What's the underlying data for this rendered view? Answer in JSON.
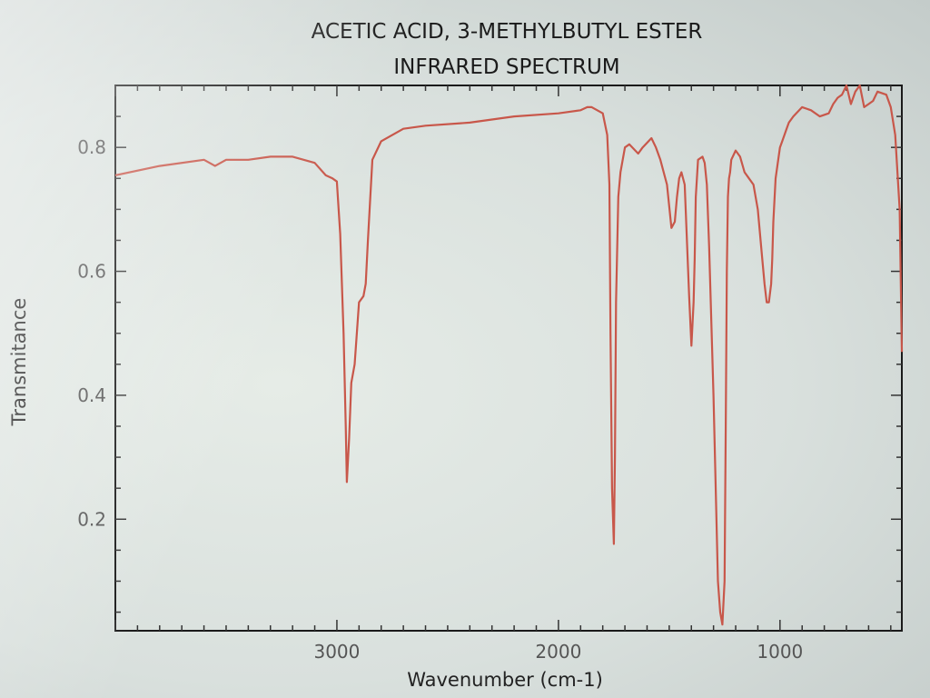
{
  "chart_data": {
    "type": "line",
    "title": [
      "ACETIC ACID, 3-METHYLBUTYL ESTER",
      "INFRARED SPECTRUM"
    ],
    "xlabel": "Wavenumber (cm-1)",
    "ylabel": "Transmitance",
    "xlim": [
      4000,
      450
    ],
    "ylim": [
      0.02,
      0.9
    ],
    "x_reversed": true,
    "x_ticks": [
      3000,
      2000,
      1000
    ],
    "x_tick_labels": [
      "3000",
      "2000",
      "1000"
    ],
    "y_ticks": [
      0.2,
      0.4,
      0.6,
      0.8
    ],
    "y_tick_labels": [
      "0.2",
      "0.4",
      "0.6",
      "0.8"
    ],
    "grid": false,
    "line_color": "#c8574a",
    "series": [
      {
        "x": [
          4000,
          3800,
          3600,
          3550,
          3500,
          3400,
          3300,
          3200,
          3100,
          3050,
          3020,
          3000,
          2985,
          2970,
          2960,
          2955,
          2945,
          2935,
          2920,
          2900,
          2880,
          2870,
          2860,
          2840,
          2800,
          2700,
          2600,
          2400,
          2200,
          2000,
          1900,
          1870,
          1850,
          1800,
          1780,
          1770,
          1765,
          1758,
          1750,
          1745,
          1740,
          1730,
          1720,
          1700,
          1680,
          1640,
          1620,
          1580,
          1560,
          1540,
          1510,
          1490,
          1475,
          1465,
          1455,
          1445,
          1430,
          1410,
          1400,
          1390,
          1385,
          1380,
          1370,
          1350,
          1340,
          1330,
          1320,
          1300,
          1280,
          1270,
          1260,
          1250,
          1245,
          1240,
          1235,
          1230,
          1225,
          1220,
          1200,
          1180,
          1160,
          1140,
          1120,
          1100,
          1080,
          1070,
          1060,
          1050,
          1040,
          1035,
          1030,
          1020,
          1000,
          990,
          970,
          960,
          940,
          900,
          860,
          820,
          780,
          760,
          740,
          720,
          700,
          680,
          660,
          640,
          620,
          600,
          580,
          560,
          520,
          500,
          480,
          460,
          450
        ],
        "y": [
          0.755,
          0.77,
          0.78,
          0.77,
          0.78,
          0.78,
          0.785,
          0.785,
          0.775,
          0.755,
          0.75,
          0.745,
          0.66,
          0.5,
          0.35,
          0.26,
          0.33,
          0.42,
          0.45,
          0.55,
          0.56,
          0.58,
          0.65,
          0.78,
          0.81,
          0.83,
          0.835,
          0.84,
          0.85,
          0.855,
          0.86,
          0.865,
          0.865,
          0.855,
          0.82,
          0.74,
          0.5,
          0.25,
          0.16,
          0.3,
          0.55,
          0.72,
          0.76,
          0.8,
          0.805,
          0.79,
          0.8,
          0.815,
          0.8,
          0.78,
          0.74,
          0.67,
          0.68,
          0.72,
          0.75,
          0.76,
          0.74,
          0.56,
          0.48,
          0.55,
          0.62,
          0.72,
          0.78,
          0.785,
          0.775,
          0.74,
          0.64,
          0.4,
          0.1,
          0.05,
          0.03,
          0.1,
          0.35,
          0.6,
          0.72,
          0.75,
          0.76,
          0.78,
          0.795,
          0.785,
          0.76,
          0.75,
          0.74,
          0.7,
          0.62,
          0.58,
          0.55,
          0.55,
          0.58,
          0.62,
          0.68,
          0.75,
          0.8,
          0.81,
          0.83,
          0.84,
          0.85,
          0.865,
          0.86,
          0.85,
          0.855,
          0.87,
          0.88,
          0.885,
          0.9,
          0.87,
          0.89,
          0.9,
          0.865,
          0.87,
          0.875,
          0.89,
          0.885,
          0.865,
          0.82,
          0.7,
          0.47
        ]
      }
    ]
  }
}
